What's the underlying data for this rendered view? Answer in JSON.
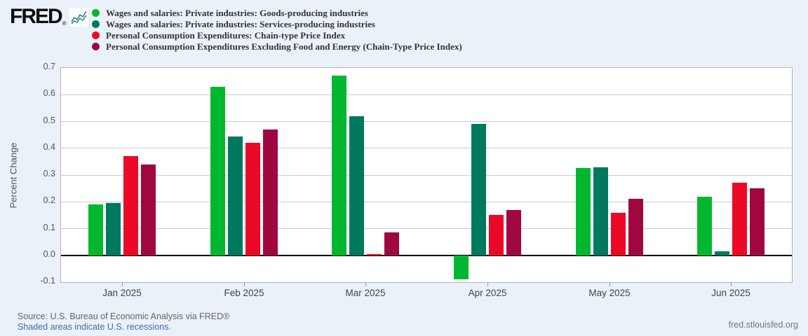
{
  "header": {
    "logo_text": "FRED",
    "registered_mark": "®"
  },
  "legend": {
    "items": [
      {
        "label": "Wages and salaries: Private industries: Goods-producing industries",
        "color": "#00b830"
      },
      {
        "label": "Wages and salaries: Private industries: Services-producing industries",
        "color": "#00795e"
      },
      {
        "label": "Personal Consumption Expenditures: Chain-type Price Index",
        "color": "#ec0927"
      },
      {
        "label": "Personal Consumption Expenditures Excluding Food and Energy (Chain-Type Price Index)",
        "color": "#a00740"
      }
    ]
  },
  "chart_data": {
    "type": "bar",
    "title": "",
    "xlabel": "",
    "ylabel": "Percent Change",
    "ylim": [
      -0.1,
      0.7
    ],
    "ytick_step": 0.1,
    "grid": true,
    "legend_position": "top",
    "categories": [
      "Jan 2025",
      "Feb 2025",
      "Mar 2025",
      "Apr 2025",
      "May 2025",
      "Jun 2025"
    ],
    "series": [
      {
        "name": "Wages and salaries: Private industries: Goods-producing industries",
        "color": "#00b830",
        "values": [
          0.19,
          0.63,
          0.67,
          -0.09,
          0.325,
          0.22
        ]
      },
      {
        "name": "Wages and salaries: Private industries: Services-producing industries",
        "color": "#00795e",
        "values": [
          0.195,
          0.445,
          0.52,
          0.49,
          0.33,
          0.015
        ]
      },
      {
        "name": "Personal Consumption Expenditures: Chain-type Price Index",
        "color": "#ec0927",
        "values": [
          0.37,
          0.42,
          0.005,
          0.15,
          0.16,
          0.27
        ]
      },
      {
        "name": "Personal Consumption Expenditures Excluding Food and Energy (Chain-Type Price Index)",
        "color": "#a00740",
        "values": [
          0.34,
          0.47,
          0.085,
          0.17,
          0.21,
          0.25
        ]
      }
    ]
  },
  "footer": {
    "source": "Source: U.S. Bureau of Economic Analysis via FRED®",
    "recessions_note": "Shaded areas indicate U.S. recessions.",
    "site": "fred.stlouisfed.org"
  }
}
